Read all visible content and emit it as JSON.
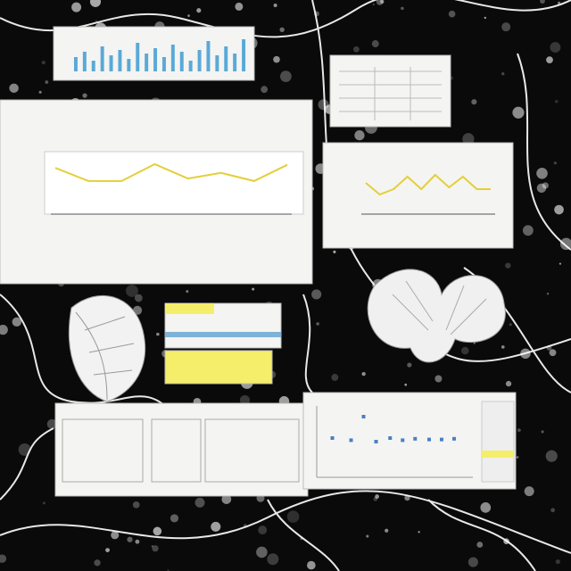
{
  "chart_data": [
    {
      "type": "bar",
      "color": "#5aa9d6",
      "ylim": [
        0,
        100
      ],
      "values": [
        40,
        55,
        30,
        70,
        45,
        60,
        35,
        80,
        50,
        65,
        40,
        75,
        55,
        30,
        60,
        85,
        45,
        70,
        50,
        90
      ]
    },
    {
      "type": "line",
      "color": "#e3cf3a",
      "ylim": [
        0,
        100
      ],
      "values": [
        74,
        53,
        53,
        80,
        57,
        66,
        53,
        79
      ]
    },
    {
      "type": "line",
      "color": "#e3cf3a",
      "ylim": [
        0,
        100
      ],
      "values": [
        70,
        44,
        56,
        84,
        56,
        88,
        60,
        84,
        56,
        56
      ]
    },
    {
      "type": "scatter",
      "color": "#4a7fc4",
      "xlim": [
        0,
        100
      ],
      "ylim": [
        0,
        100
      ],
      "x": [
        10,
        22,
        30,
        38,
        47,
        55,
        63,
        72,
        80,
        88
      ],
      "y": [
        55,
        52,
        85,
        50,
        55,
        52,
        54,
        53,
        53,
        54
      ]
    }
  ]
}
